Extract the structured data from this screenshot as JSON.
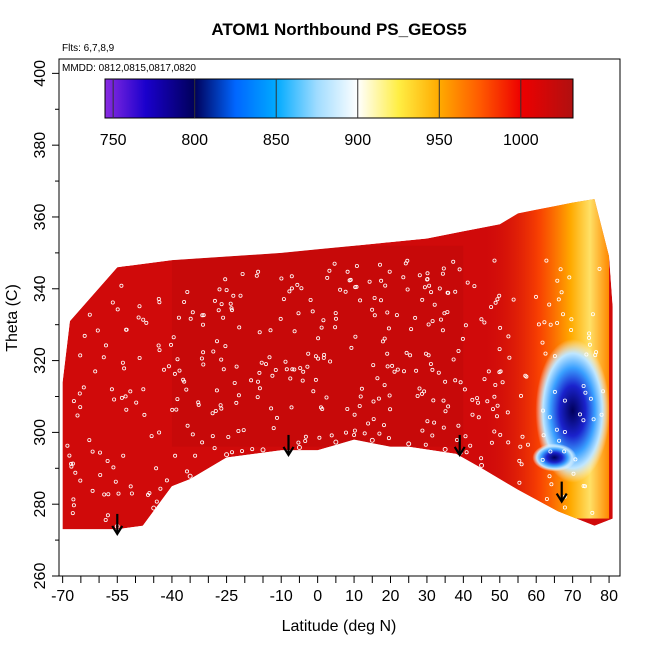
{
  "chart_data": {
    "type": "heatmap",
    "title": "ATOM1 Northbound PS_GEOS5",
    "annotations": {
      "flights": "Flts: 6,7,8,9",
      "dates": "MMDD: 0812,0815,0817,0820"
    },
    "xlabel": "Latitude (deg N)",
    "ylabel": "Theta (C)",
    "xlim": [
      -71,
      83
    ],
    "ylim": [
      260,
      404
    ],
    "x_ticks": [
      -70,
      -55,
      -40,
      -25,
      -10,
      0,
      10,
      20,
      30,
      40,
      50,
      60,
      70,
      80
    ],
    "x_minor_ticks": [
      -65,
      -60,
      -50,
      -45,
      -35,
      -30,
      -20,
      -15,
      -5,
      5,
      15,
      25,
      35,
      45,
      55,
      65,
      75
    ],
    "y_ticks": [
      260,
      280,
      300,
      320,
      340,
      360,
      380,
      400
    ],
    "colorbar": {
      "label_values": [
        750,
        800,
        850,
        900,
        950,
        1000
      ],
      "range": [
        745,
        1032
      ],
      "stops": [
        {
          "v": 745,
          "color": "#8a2be2"
        },
        {
          "v": 770,
          "color": "#1a00cc"
        },
        {
          "v": 800,
          "color": "#00005a"
        },
        {
          "v": 825,
          "color": "#0066ff"
        },
        {
          "v": 850,
          "color": "#00aaff"
        },
        {
          "v": 875,
          "color": "#a0dcff"
        },
        {
          "v": 900,
          "color": "#ffffff"
        },
        {
          "v": 925,
          "color": "#ffee44"
        },
        {
          "v": 950,
          "color": "#ffaa00"
        },
        {
          "v": 975,
          "color": "#ff5a00"
        },
        {
          "v": 1000,
          "color": "#ee0000"
        },
        {
          "v": 1032,
          "color": "#b01010"
        }
      ]
    },
    "field": {
      "base_color": "#d00a0a",
      "top_boundary": [
        [
          -70,
          314
        ],
        [
          -68,
          331
        ],
        [
          -55,
          346
        ],
        [
          -40,
          348
        ],
        [
          -25,
          349
        ],
        [
          -10,
          350
        ],
        [
          0,
          351
        ],
        [
          10,
          352
        ],
        [
          20,
          353
        ],
        [
          30,
          354
        ],
        [
          40,
          356
        ],
        [
          50,
          358
        ],
        [
          55,
          361
        ],
        [
          60,
          362
        ],
        [
          65,
          363
        ],
        [
          70,
          364
        ],
        [
          76,
          365
        ],
        [
          80,
          349
        ],
        [
          81,
          335
        ]
      ],
      "bottom_boundary": [
        [
          81,
          276
        ],
        [
          76,
          274
        ],
        [
          66,
          278
        ],
        [
          55,
          284
        ],
        [
          45,
          290
        ],
        [
          38,
          294
        ],
        [
          25,
          296
        ],
        [
          20,
          296
        ],
        [
          10,
          298
        ],
        [
          0,
          295
        ],
        [
          -10,
          295
        ],
        [
          -25,
          293
        ],
        [
          -35,
          287
        ],
        [
          -40,
          285
        ],
        [
          -48,
          274
        ],
        [
          -55,
          273
        ],
        [
          -60,
          273
        ],
        [
          -70,
          273
        ]
      ],
      "high_pressure_warm_zone": {
        "lat_range": [
          45,
          80
        ],
        "theta_range": [
          276,
          365
        ]
      },
      "low_pressure_blue_zone": {
        "lat_range": [
          62,
          78
        ],
        "theta_range": [
          286,
          326
        ]
      }
    },
    "trajectory_arrows": [
      {
        "lat": -55,
        "theta": 272
      },
      {
        "lat": -8,
        "theta": 294
      },
      {
        "lat": 39,
        "theta": 294
      },
      {
        "lat": 67,
        "theta": 281
      }
    ]
  }
}
